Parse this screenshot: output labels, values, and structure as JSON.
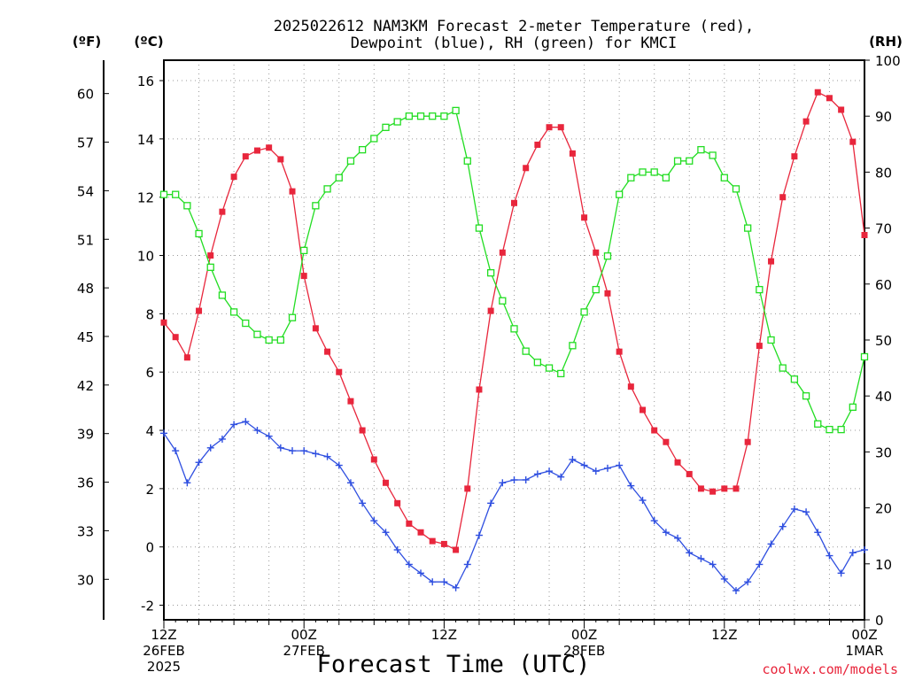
{
  "page": {
    "title_line1": "2025022612 NAM3KM Forecast 2-meter Temperature (red),",
    "title_line2": "Dewpoint (blue), RH (green) for KMCI",
    "unit_f": "(ºF)",
    "unit_c": "(ºC)",
    "unit_rh": "(RH)",
    "xlabel": "Forecast Time (UTC)",
    "credit": "coolwx.com/models"
  },
  "chart_data": {
    "type": "line",
    "title": "2025022612 NAM3KM Forecast 2-meter Temperature (red), Dewpoint (blue), RH (green) for KMCI",
    "xlabel": "Forecast Time (UTC)",
    "x_ticks": [
      {
        "hour": 0,
        "lines": [
          "12Z",
          "26FEB",
          "2025"
        ]
      },
      {
        "hour": 12,
        "lines": [
          "00Z",
          "27FEB"
        ]
      },
      {
        "hour": 24,
        "lines": [
          "12Z"
        ]
      },
      {
        "hour": 36,
        "lines": [
          "00Z",
          "28FEB"
        ]
      },
      {
        "hour": 48,
        "lines": [
          "12Z"
        ]
      },
      {
        "hour": 60,
        "lines": [
          "00Z",
          "1MAR"
        ]
      }
    ],
    "x_range_hours": [
      0,
      60
    ],
    "y_left_c": {
      "label": "(ºC)",
      "range": [
        -2.5,
        16.7
      ],
      "ticks": [
        -2,
        0,
        2,
        4,
        6,
        8,
        10,
        12,
        14,
        16
      ]
    },
    "y_left_f": {
      "label": "(ºF)",
      "ticks": [
        30,
        33,
        36,
        39,
        42,
        45,
        48,
        51,
        54,
        57,
        60
      ]
    },
    "y_right_rh": {
      "label": "(RH)",
      "range": [
        0,
        100
      ],
      "ticks": [
        0,
        10,
        20,
        30,
        40,
        50,
        60,
        70,
        80,
        90,
        100
      ]
    },
    "grid": true,
    "colors": {
      "temperature": "#e8263c",
      "dewpoint": "#2f4fe0",
      "rh": "#22dd22"
    },
    "series": [
      {
        "name": "Temperature",
        "units": "C",
        "values": [
          7.7,
          7.2,
          6.5,
          8.1,
          10.0,
          11.5,
          12.7,
          13.4,
          13.6,
          13.7,
          13.3,
          12.2,
          9.3,
          7.5,
          6.7,
          6.0,
          5.0,
          4.0,
          3.0,
          2.2,
          1.5,
          0.8,
          0.5,
          0.2,
          0.1,
          -0.1,
          2.0,
          5.4,
          8.1,
          10.1,
          11.8,
          13.0,
          13.8,
          14.4,
          14.4,
          13.5,
          11.3,
          10.1,
          8.7,
          6.7,
          5.5,
          4.7,
          4.0,
          3.6,
          2.9,
          2.5,
          2.0,
          1.9,
          2.0,
          2.0,
          3.6,
          6.9,
          9.8,
          12.0,
          13.4,
          14.6,
          15.6,
          15.4,
          15.0,
          13.9,
          10.7
        ]
      },
      {
        "name": "Dewpoint",
        "units": "C",
        "values": [
          3.9,
          3.3,
          2.2,
          2.9,
          3.4,
          3.7,
          4.2,
          4.3,
          4.0,
          3.8,
          3.4,
          3.3,
          3.3,
          3.2,
          3.1,
          2.8,
          2.2,
          1.5,
          0.9,
          0.5,
          -0.1,
          -0.6,
          -0.9,
          -1.2,
          -1.2,
          -1.4,
          -0.6,
          0.4,
          1.5,
          2.2,
          2.3,
          2.3,
          2.5,
          2.6,
          2.4,
          3.0,
          2.8,
          2.6,
          2.7,
          2.8,
          2.1,
          1.6,
          0.9,
          0.5,
          0.3,
          -0.2,
          -0.4,
          -0.6,
          -1.1,
          -1.5,
          -1.2,
          -0.6,
          0.1,
          0.7,
          1.3,
          1.2,
          0.5,
          -0.3,
          -0.9,
          -0.2,
          -0.1
        ]
      },
      {
        "name": "RH",
        "units": "%",
        "values": [
          76,
          76,
          74,
          69,
          63,
          58,
          55,
          53,
          51,
          50,
          50,
          54,
          66,
          74,
          77,
          79,
          82,
          84,
          86,
          88,
          89,
          90,
          90,
          90,
          90,
          91,
          82,
          70,
          62,
          57,
          52,
          48,
          46,
          45,
          44,
          49,
          55,
          59,
          65,
          76,
          79,
          80,
          80,
          79,
          82,
          82,
          84,
          83,
          79,
          77,
          70,
          59,
          50,
          45,
          43,
          40,
          35,
          34,
          34,
          38,
          47
        ]
      }
    ]
  }
}
